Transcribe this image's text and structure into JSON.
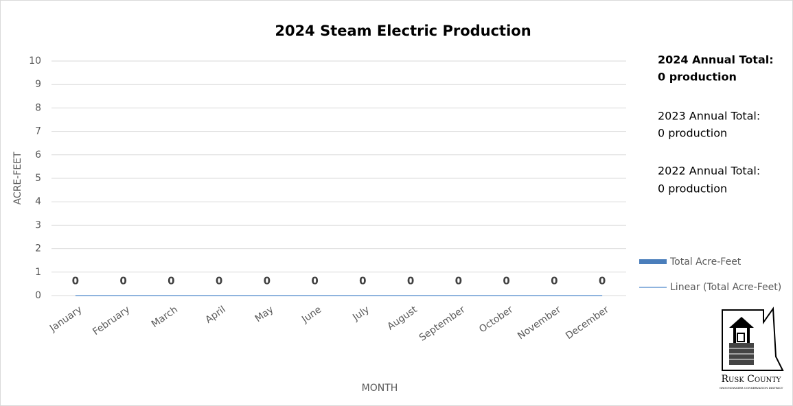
{
  "chart_data": {
    "type": "bar",
    "title": "2024 Steam Electric Production",
    "categories": [
      "January",
      "February",
      "March",
      "April",
      "May",
      "June",
      "July",
      "August",
      "September",
      "October",
      "November",
      "December"
    ],
    "series": [
      {
        "name": "Total Acre-Feet",
        "color": "#4a7ebb",
        "values": [
          0,
          0,
          0,
          0,
          0,
          0,
          0,
          0,
          0,
          0,
          0,
          0
        ]
      }
    ],
    "trendline": {
      "name": "Linear (Total Acre-Feet)",
      "color": "#8fb4de"
    },
    "ylim": [
      0,
      10
    ],
    "yticks": [
      0,
      1,
      2,
      3,
      4,
      5,
      6,
      7,
      8,
      9,
      10
    ],
    "grid": true,
    "ylabel": "ACRE-FEET",
    "xlabel": "MONTH",
    "legend": "right",
    "annotations": [
      "2024 Annual Total:",
      "0 production",
      "2023 Annual Total:",
      "0 production",
      "2022 Annual Total:",
      "0 production"
    ]
  },
  "logo": {
    "name": "Rusk County",
    "subtitle": "GROUNDWATER CONSERVATION DISTRICT"
  }
}
